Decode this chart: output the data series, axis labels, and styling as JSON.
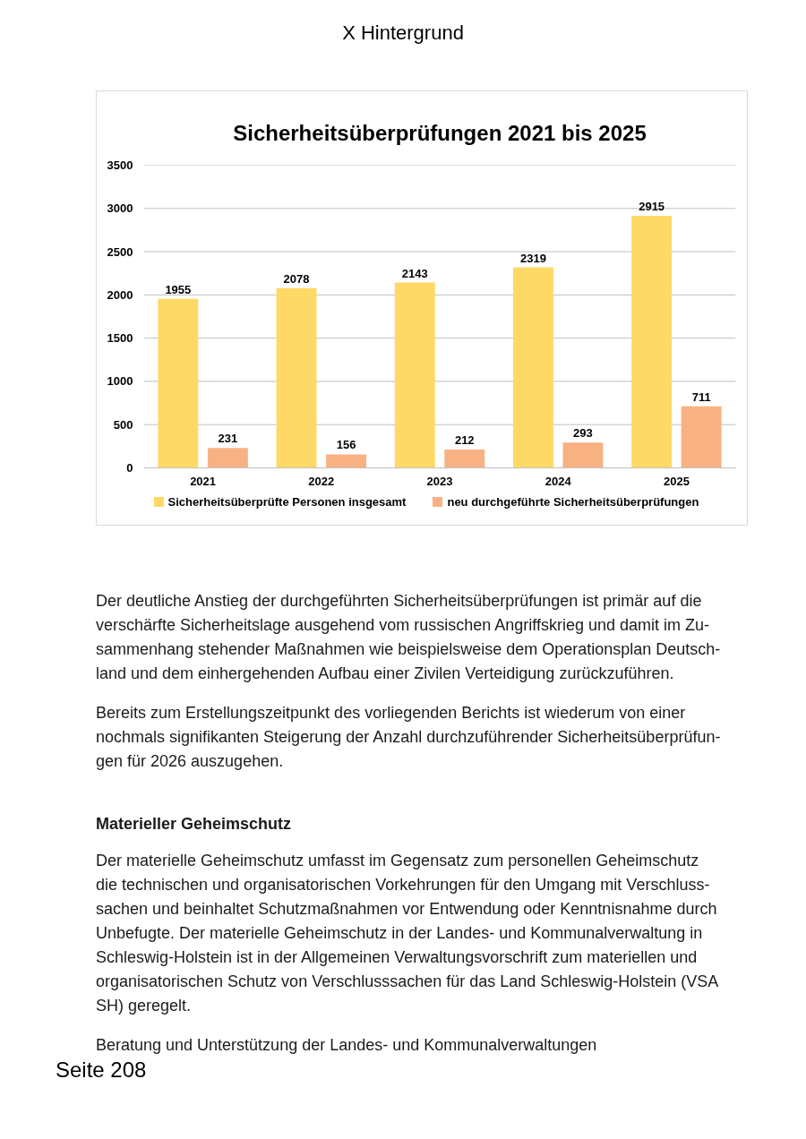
{
  "chart_data": {
    "type": "bar",
    "title": "Sicherheitsüberprüfungen 2021 bis 2025",
    "categories": [
      "2021",
      "2022",
      "2023",
      "2024",
      "2025"
    ],
    "series": [
      {
        "name": "Sicherheitsüberprüfte Personen insgesamt",
        "color": "#fed966",
        "values": [
          1955,
          2078,
          2143,
          2319,
          2915
        ]
      },
      {
        "name": "neu durchgeführte Sicherheitsüberprüfungen",
        "color": "#f8b183",
        "values": [
          231,
          156,
          212,
          293,
          711
        ]
      }
    ],
    "ylim": [
      0,
      3500
    ],
    "yticks": [
      0,
      500,
      1000,
      1500,
      2000,
      2500,
      3000,
      3500
    ],
    "grid": "y",
    "legend": "bottom",
    "data_labels": true,
    "annotations": [
      "X Hintergrund",
      "Der deutliche Anstieg der durchgeführten Sicherheitsüberprüfungen ist primär auf die\nverschärfte Sicherheitslage ausgehend vom russischen Angriffskrieg und damit im Zu-\nsammenhang stehender Maßnahmen wie beispielsweise dem Operationsplan Deutsch-\nland und dem einhergehenden Aufbau einer Zivilen Verteidigung zurückzuführen.",
      "Bereits zum Erstellungszeitpunkt des vorliegenden Berichts ist wiederum von einer\nnochmals signifikanten Steigerung der Anzahl durchzuführender Sicherheitsüberprüfun-\ngen für 2026 auszugehen.",
      "Materieller Geheimschutz",
      "Der materielle Geheimschutz umfasst im Gegensatz zum personellen Geheimschutz\ndie technischen und organisatorischen Vorkehrungen für den Umgang mit Verschluss-\nsachen und beinhaltet Schutzmaßnahmen vor Entwendung oder Kenntnisnahme durch\nUnbefugte. Der materielle Geheimschutz in der Landes- und Kommunalverwaltung in\nSchleswig-Holstein ist in der Allgemeinen Verwaltungsvorschrift zum materiellen und\norganisatorischen Schutz von Verschlusssachen für das Land Schleswig-Holstein (VSA\nSH) geregelt.",
      "Beratung und Unterstützung der Landes- und Kommunalverwaltungen",
      "Seite 208"
    ]
  }
}
